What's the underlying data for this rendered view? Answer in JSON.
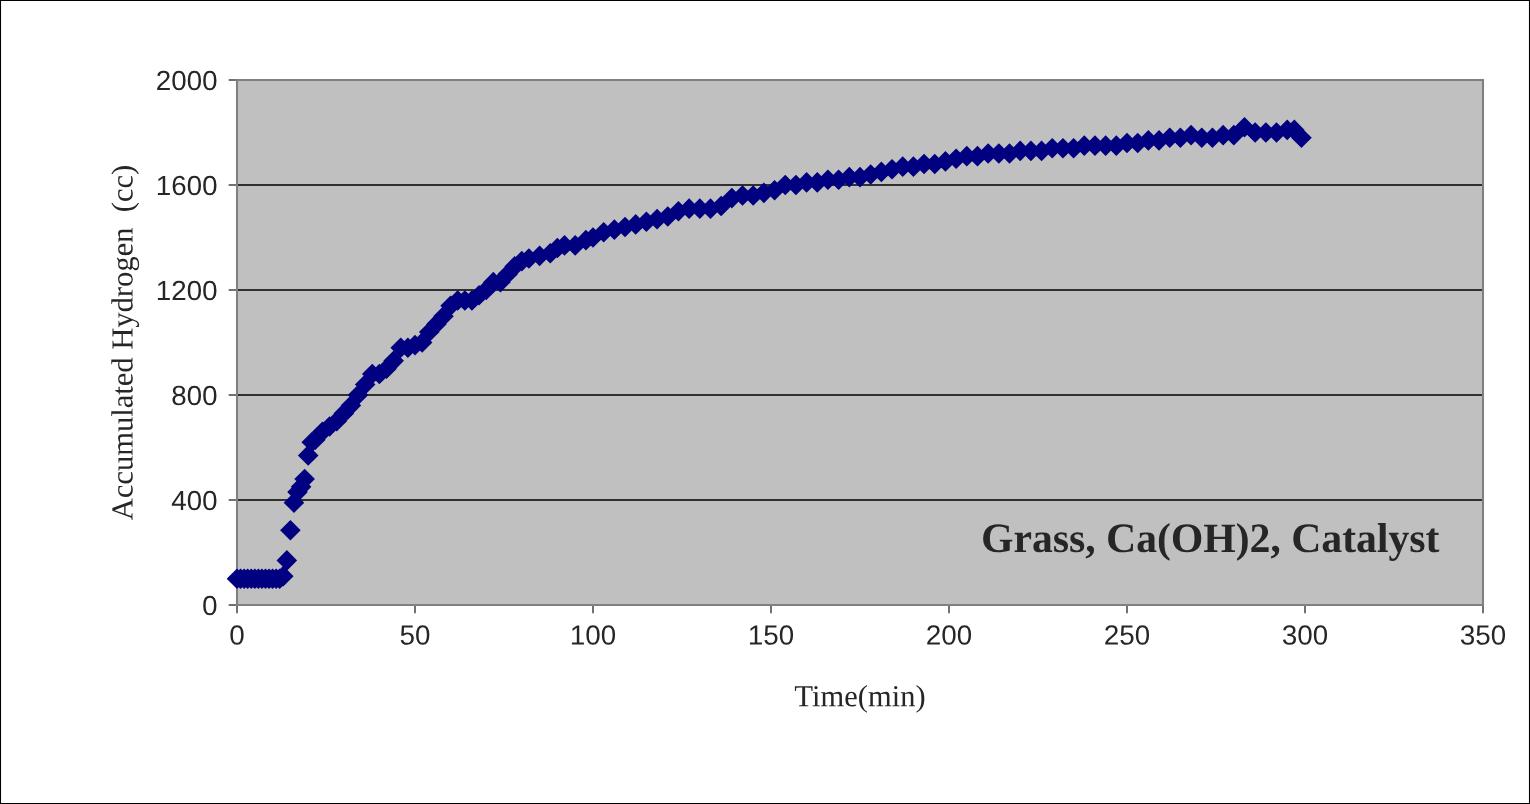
{
  "chart_data": {
    "type": "scatter",
    "xlabel": "Time(min)",
    "ylabel": "Accumulated Hydrogen  (cc)",
    "annotations": [
      "Grass, Ca(OH)2, Catalyst"
    ],
    "x": [
      0,
      1,
      2,
      3,
      4,
      5,
      6,
      7,
      8,
      9,
      10,
      11,
      12,
      13,
      14,
      15,
      16,
      17,
      18,
      19,
      20,
      21,
      22,
      24,
      26,
      28,
      30,
      32,
      34,
      36,
      38,
      40,
      42,
      44,
      46,
      48,
      50,
      52,
      54,
      56,
      58,
      60,
      62,
      64,
      66,
      68,
      70,
      72,
      74,
      76,
      78,
      80,
      82,
      85,
      88,
      90,
      92,
      95,
      98,
      100,
      103,
      106,
      109,
      112,
      115,
      118,
      121,
      124,
      127,
      130,
      133,
      136,
      139,
      142,
      145,
      148,
      151,
      154,
      157,
      160,
      163,
      166,
      169,
      172,
      175,
      178,
      181,
      184,
      187,
      190,
      193,
      196,
      199,
      202,
      205,
      208,
      211,
      214,
      217,
      220,
      223,
      226,
      229,
      232,
      235,
      238,
      241,
      244,
      247,
      250,
      253,
      256,
      259,
      262,
      265,
      268,
      271,
      274,
      277,
      280,
      283,
      286,
      289,
      292,
      295,
      297,
      299
    ],
    "series": [
      {
        "color": "#000080",
        "values": [
          100,
          100,
          100,
          100,
          100,
          100,
          100,
          100,
          100,
          100,
          100,
          100,
          100,
          110,
          170,
          285,
          390,
          430,
          450,
          480,
          570,
          620,
          630,
          660,
          680,
          700,
          730,
          760,
          800,
          840,
          880,
          880,
          900,
          930,
          980,
          980,
          990,
          1000,
          1040,
          1070,
          1100,
          1140,
          1160,
          1160,
          1160,
          1180,
          1200,
          1230,
          1230,
          1260,
          1290,
          1310,
          1320,
          1330,
          1340,
          1360,
          1370,
          1370,
          1390,
          1400,
          1420,
          1430,
          1440,
          1450,
          1460,
          1470,
          1480,
          1500,
          1510,
          1510,
          1510,
          1520,
          1550,
          1560,
          1560,
          1570,
          1580,
          1600,
          1600,
          1610,
          1610,
          1620,
          1620,
          1630,
          1630,
          1640,
          1650,
          1660,
          1670,
          1670,
          1680,
          1680,
          1690,
          1700,
          1710,
          1710,
          1720,
          1720,
          1720,
          1730,
          1730,
          1730,
          1740,
          1740,
          1740,
          1750,
          1750,
          1750,
          1750,
          1760,
          1760,
          1770,
          1770,
          1780,
          1780,
          1790,
          1780,
          1780,
          1790,
          1790,
          1820,
          1800,
          1800,
          1800,
          1810,
          1810,
          1780
        ]
      }
    ],
    "xlim": [
      0,
      350
    ],
    "xticks": [
      0,
      50,
      100,
      150,
      200,
      250,
      300,
      350
    ],
    "ylim": [
      0,
      2000
    ],
    "yticks": [
      0,
      400,
      800,
      1200,
      1600,
      2000
    ],
    "grid": "y",
    "marker": "diamond",
    "legend": false
  }
}
